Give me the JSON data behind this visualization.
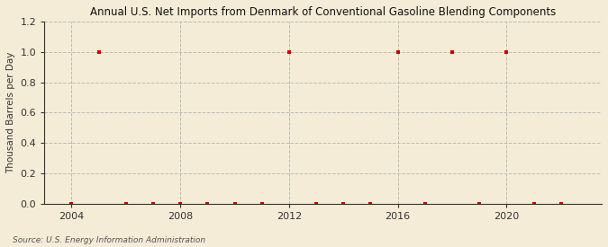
{
  "title": "Annual U.S. Net Imports from Denmark of Conventional Gasoline Blending Components",
  "ylabel": "Thousand Barrels per Day",
  "source": "Source: U.S. Energy Information Administration",
  "bg_color": "#f5ecd7",
  "plot_bg_color": "#f5ecd7",
  "grid_color": "#bbbbbb",
  "marker_color": "#cc0000",
  "xlim": [
    2003.0,
    2023.5
  ],
  "ylim": [
    0.0,
    1.2
  ],
  "yticks": [
    0.0,
    0.2,
    0.4,
    0.6,
    0.8,
    1.0,
    1.2
  ],
  "xticks": [
    2004,
    2008,
    2012,
    2016,
    2020
  ],
  "years": [
    2004,
    2005,
    2006,
    2007,
    2008,
    2009,
    2010,
    2011,
    2012,
    2013,
    2014,
    2015,
    2016,
    2017,
    2018,
    2019,
    2020,
    2021,
    2022
  ],
  "values": [
    0,
    1,
    0,
    0,
    0,
    0,
    0,
    0,
    1,
    0,
    0,
    0,
    1,
    0,
    1,
    0,
    1,
    0,
    0
  ]
}
